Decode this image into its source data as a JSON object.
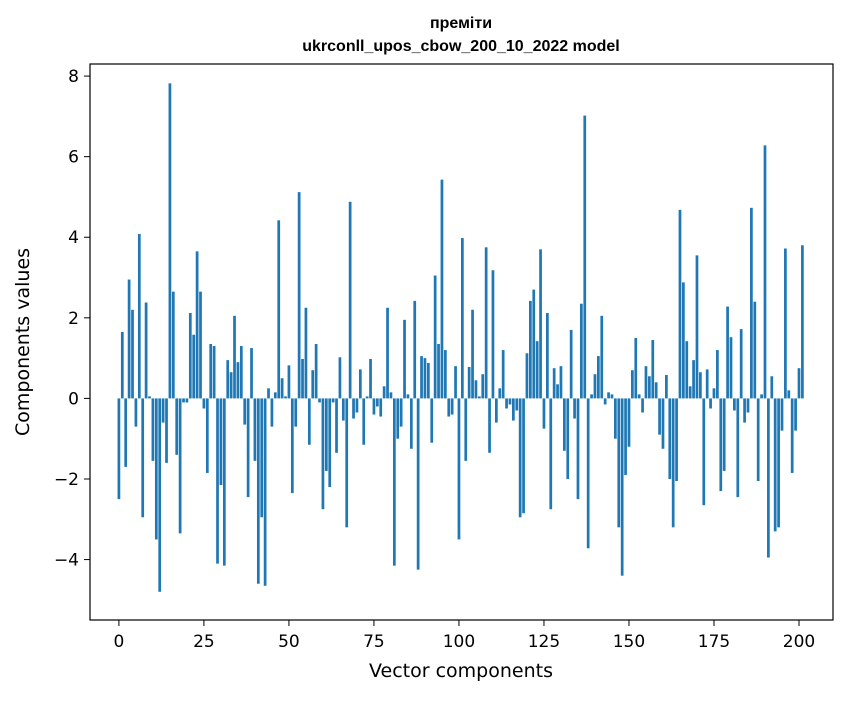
{
  "chart_data": {
    "type": "bar",
    "title": "преміти",
    "subtitle": "ukrconll_upos_cbow_200_10_2022 model",
    "xlabel": "Vector components",
    "ylabel": "Components values",
    "xlim": [
      -8.5,
      210
    ],
    "ylim": [
      -5.5,
      8.3
    ],
    "x_ticks": [
      0,
      25,
      50,
      75,
      100,
      125,
      150,
      175,
      200
    ],
    "y_ticks": [
      -4,
      -2,
      0,
      2,
      4,
      6,
      8
    ],
    "x_tick_labels": [
      "0",
      "25",
      "50",
      "75",
      "100",
      "125",
      "150",
      "175",
      "200"
    ],
    "y_tick_labels": [
      "−4",
      "−2",
      "0",
      "2",
      "4",
      "6",
      "8"
    ],
    "grid": false,
    "bar_color": "#1f77b4",
    "values": [
      -2.5,
      1.65,
      -1.7,
      2.95,
      2.2,
      -0.7,
      4.08,
      -2.95,
      2.38,
      0.05,
      -1.55,
      -3.5,
      -4.8,
      -0.6,
      -1.6,
      7.82,
      2.65,
      -1.4,
      -3.35,
      -0.1,
      -0.1,
      2.12,
      1.58,
      3.65,
      2.65,
      -0.25,
      -1.85,
      1.35,
      1.3,
      -4.1,
      -2.15,
      -4.15,
      0.95,
      0.65,
      2.05,
      0.9,
      1.3,
      -0.65,
      -2.45,
      1.25,
      -1.55,
      -4.6,
      -2.95,
      -4.65,
      0.25,
      -0.7,
      0.15,
      4.42,
      0.5,
      0.05,
      0.82,
      -2.35,
      -0.7,
      5.12,
      0.98,
      2.25,
      -1.15,
      0.7,
      1.35,
      -0.1,
      -2.75,
      -1.8,
      -2.2,
      -0.1,
      -1.35,
      1.02,
      -0.55,
      -3.2,
      4.88,
      -0.5,
      -0.35,
      0.72,
      -1.15,
      0.05,
      0.98,
      -0.4,
      -0.2,
      -0.45,
      0.3,
      2.25,
      0.15,
      -4.15,
      -1.0,
      -0.7,
      1.95,
      0.1,
      -1.25,
      2.42,
      -4.25,
      1.05,
      1.0,
      0.88,
      -1.1,
      3.05,
      1.35,
      5.43,
      1.2,
      -0.45,
      -0.4,
      0.8,
      -3.5,
      3.98,
      -1.55,
      0.78,
      2.2,
      0.45,
      0.05,
      0.6,
      3.75,
      -1.35,
      3.18,
      -0.6,
      0.25,
      1.2,
      -0.25,
      -0.15,
      -0.55,
      -0.3,
      -2.95,
      -2.85,
      1.12,
      2.42,
      2.7,
      1.42,
      3.7,
      -0.75,
      2.12,
      -2.75,
      0.75,
      0.35,
      0.8,
      -1.3,
      -2.0,
      1.7,
      -0.5,
      -2.5,
      2.35,
      7.02,
      -3.72,
      0.1,
      0.6,
      1.05,
      2.05,
      -0.15,
      0.15,
      0.1,
      -1.0,
      -3.2,
      -4.4,
      -1.9,
      -1.2,
      0.7,
      1.5,
      0.1,
      -0.35,
      0.8,
      0.55,
      1.45,
      0.4,
      -0.9,
      -1.25,
      0.58,
      -2.0,
      -3.2,
      -2.05,
      4.68,
      2.88,
      1.42,
      0.3,
      0.95,
      3.55,
      0.65,
      -2.65,
      0.72,
      -0.25,
      0.25,
      1.2,
      -2.3,
      -1.8,
      2.28,
      1.52,
      -0.3,
      -2.45,
      1.72,
      -0.6,
      -0.35,
      4.73,
      2.4,
      -2.05,
      0.1,
      6.28,
      -3.95,
      0.55,
      -3.3,
      -3.2,
      -0.8,
      3.72,
      0.2,
      -1.85,
      -0.8,
      0.75,
      3.8
    ]
  }
}
